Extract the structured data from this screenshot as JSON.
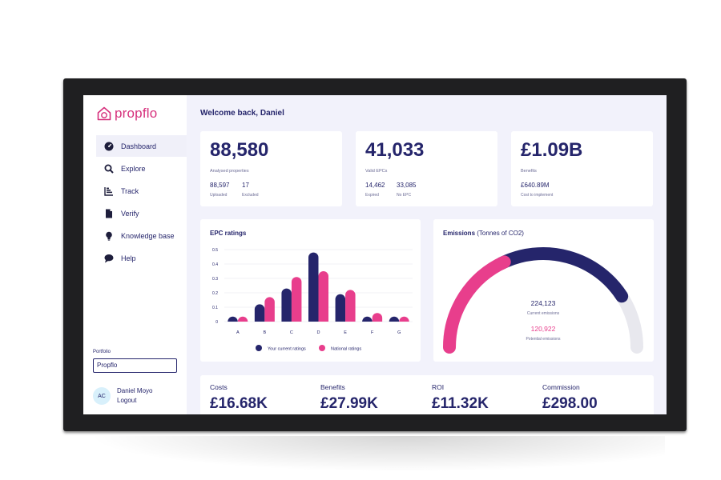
{
  "app": {
    "logo_text": "propflo"
  },
  "colors": {
    "navy": "#25256b",
    "pink": "#e83e8c",
    "grey": "#e8e8ee",
    "background": "#f2f2fb"
  },
  "sidebar": {
    "items": [
      {
        "label": "Dashboard",
        "icon": "dashboard-gauge-icon",
        "active": true
      },
      {
        "label": "Explore",
        "icon": "search-icon"
      },
      {
        "label": "Track",
        "icon": "bar-chart-icon"
      },
      {
        "label": "Verify",
        "icon": "document-icon"
      },
      {
        "label": "Knowledge base",
        "icon": "lightbulb-icon"
      },
      {
        "label": "Help",
        "icon": "chat-bubble-icon"
      }
    ],
    "portfolio_label": "Portfolio",
    "portfolio_value": "Propflo",
    "user": {
      "initials": "AC",
      "name": "Daniel Moyo",
      "logout": "Logout"
    }
  },
  "welcome": "Welcome back, Daniel",
  "kpis": [
    {
      "value": "88,580",
      "label": "Analysed properties",
      "sub": [
        {
          "value": "88,597",
          "label": "Uploaded"
        },
        {
          "value": "17",
          "label": "Excluded"
        }
      ]
    },
    {
      "value": "41,033",
      "label": "Valid EPCs",
      "sub": [
        {
          "value": "14,462",
          "label": "Expired"
        },
        {
          "value": "33,085",
          "label": "No EPC"
        }
      ]
    },
    {
      "value": "£1.09B",
      "label": "Benefits",
      "sub": [
        {
          "value": "£640.89M",
          "label": "Cost to implement"
        }
      ]
    }
  ],
  "epc": {
    "title": "EPC ratings",
    "legend": {
      "current": "Your current ratings",
      "national": "National ratings"
    }
  },
  "emissions": {
    "title": "Emissions",
    "title_unit": "(Tonnes of CO2)",
    "current_value": "224,123",
    "current_label": "Current emissions",
    "potential_value": "120,922",
    "potential_label": "Potential emissions"
  },
  "bottom": [
    {
      "label": "Costs",
      "value": "£16.68K"
    },
    {
      "label": "Benefits",
      "value": "£27.99K"
    },
    {
      "label": "ROI",
      "value": "£11.32K"
    },
    {
      "label": "Commission",
      "value": "£298.00"
    }
  ],
  "chart_data": [
    {
      "type": "bar",
      "title": "EPC ratings",
      "categories": [
        "A",
        "B",
        "C",
        "D",
        "E",
        "F",
        "G"
      ],
      "series": [
        {
          "name": "Your current ratings",
          "values": [
            0.005,
            0.12,
            0.23,
            0.48,
            0.19,
            0.03,
            0.02
          ]
        },
        {
          "name": "National ratings",
          "values": [
            0.005,
            0.17,
            0.31,
            0.35,
            0.22,
            0.06,
            0.02
          ]
        }
      ],
      "yticks": [
        "0",
        "0.1",
        "0.2",
        "0.3",
        "0.4",
        "0.5"
      ],
      "ylim": [
        0,
        0.5
      ],
      "grid": true,
      "legend": "bottom"
    },
    {
      "type": "pie",
      "title": "Emissions (Tonnes of CO2)",
      "categories": [
        "Current emissions",
        "Potential emissions"
      ],
      "values": [
        224123,
        120922
      ]
    }
  ]
}
